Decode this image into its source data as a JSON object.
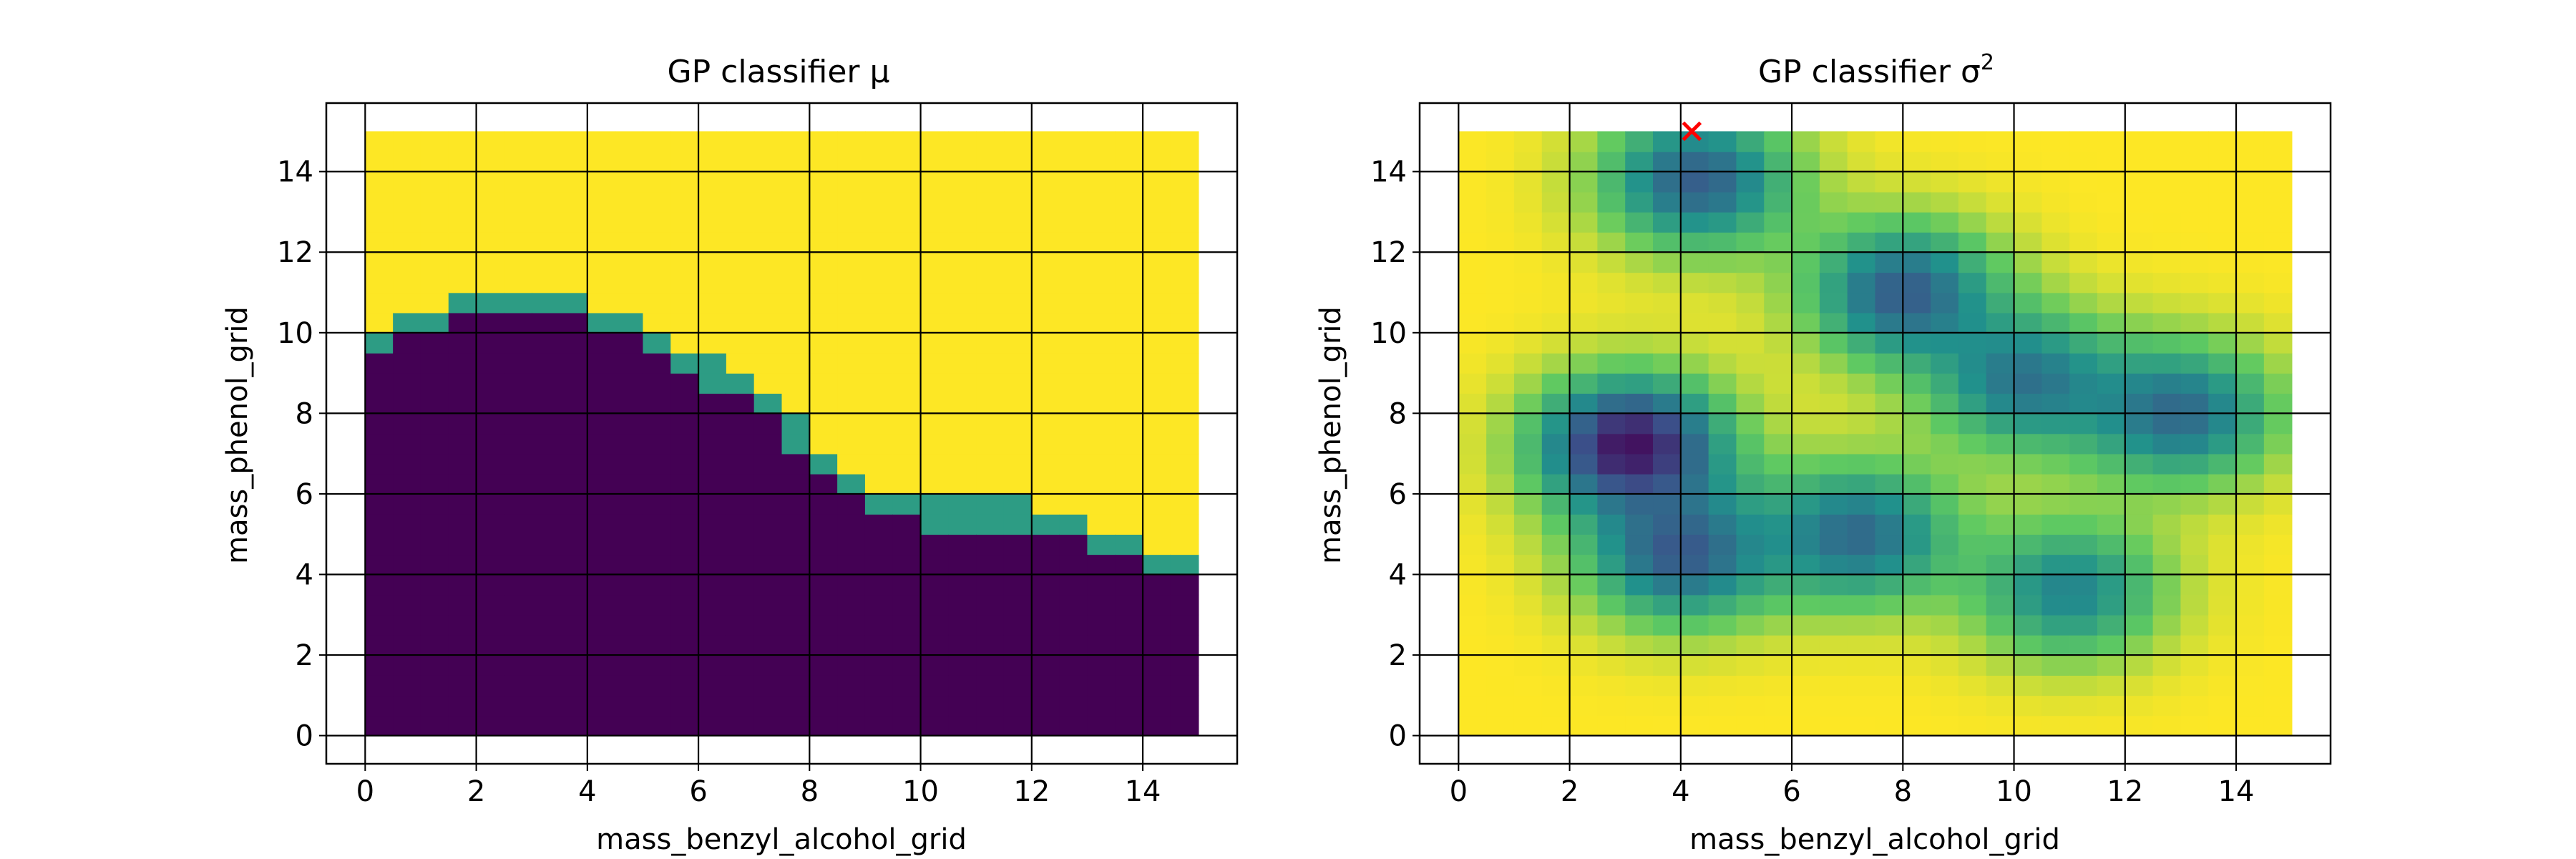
{
  "colors": {
    "viridis": [
      "#440154",
      "#3b528b",
      "#21918c",
      "#5ec962",
      "#fde725"
    ],
    "grid": "#000000",
    "marker": "#ff0000"
  },
  "chart_data": [
    {
      "type": "heatmap",
      "title": "GP classifier μ",
      "title_sup": "",
      "xlabel": "mass_benzyl_alcohol_grid",
      "ylabel": "mass_phenol_grid",
      "xlim": [
        -0.7,
        15.7
      ],
      "ylim": [
        -0.7,
        15.7
      ],
      "data_range": [
        0,
        15
      ],
      "xticks": [
        0,
        2,
        4,
        6,
        8,
        10,
        12,
        14
      ],
      "yticks": [
        0,
        2,
        4,
        6,
        8,
        10,
        12,
        14
      ],
      "grid": true,
      "colormap": "viridis",
      "value_range": [
        0,
        1
      ],
      "description": "binary decision field",
      "boundary": [
        [
          0,
          9.8
        ],
        [
          1,
          10.2
        ],
        [
          2,
          10.7
        ],
        [
          3,
          11.0
        ],
        [
          4,
          10.5
        ],
        [
          5,
          10.0
        ],
        [
          6,
          9.2
        ],
        [
          7,
          8.5
        ],
        [
          8,
          7.2
        ],
        [
          9,
          6.0
        ],
        [
          10,
          5.5
        ],
        [
          11,
          5.5
        ],
        [
          12,
          5.5
        ],
        [
          13,
          5.0
        ],
        [
          14,
          4.4
        ],
        [
          15,
          4.2
        ]
      ],
      "markers": []
    },
    {
      "type": "heatmap",
      "title": "GP classifier σ",
      "title_sup": "2",
      "xlabel": "mass_benzyl_alcohol_grid",
      "ylabel": "mass_phenol_grid",
      "xlim": [
        -0.7,
        15.7
      ],
      "ylim": [
        -0.7,
        15.7
      ],
      "data_range": [
        0,
        15
      ],
      "xticks": [
        0,
        2,
        4,
        6,
        8,
        10,
        12,
        14
      ],
      "yticks": [
        0,
        2,
        4,
        6,
        8,
        10,
        12,
        14
      ],
      "grid": true,
      "colormap": "viridis",
      "value_range": [
        0,
        1
      ],
      "low_variance_centers": [
        [
          3.1,
          7.2,
          0.05
        ],
        [
          4.3,
          13.8,
          0.3
        ],
        [
          8.0,
          11.0,
          0.3
        ],
        [
          7.2,
          5.0,
          0.35
        ],
        [
          4.0,
          4.5,
          0.3
        ],
        [
          11.0,
          3.6,
          0.45
        ],
        [
          13.0,
          8.0,
          0.35
        ],
        [
          10.2,
          8.8,
          0.4
        ]
      ],
      "markers": [
        {
          "x": 4.2,
          "y": 15.0,
          "symbol": "x",
          "color": "#ff0000"
        }
      ]
    }
  ]
}
